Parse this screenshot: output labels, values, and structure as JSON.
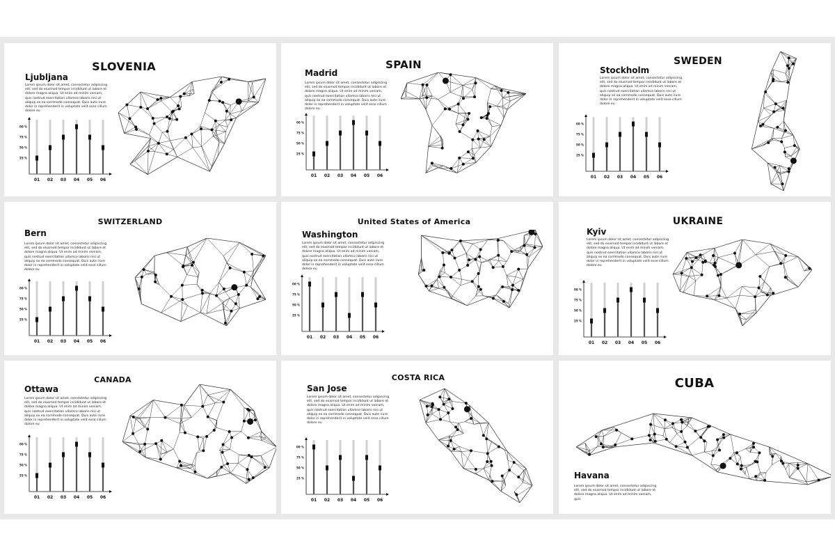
{
  "lorem": "Lorem ipsum dolor sit amet, consectetur adipiscing elit, sed do eiusmod tempor incididunt ut labore et dolore magna aliqua. Ut enim ad minim veniam, quis nostrud exercitation ullamco laboris nisi ut aliquip ex ea commodo consequat. Duis aute irure dolor in reprehenderit in voluptate velit esse cillum dolore eu",
  "lorem_short": "Lorem ipsum dolor sit amet, consectetur adipiscing elit, sed do eiusmod tempor incididunt ut labore et dolore magna aliqua. Ut enim ad minim veniam, quis",
  "colors": {
    "background": "#e8e8e8",
    "slide": "#ffffff",
    "ink": "#111111",
    "track": "#d0d0d0",
    "bar": "#555555"
  },
  "chart_axis": {
    "ticks": [
      "25 %",
      "50 %",
      "75 %",
      "100 %"
    ],
    "categories": [
      "01",
      "02",
      "03",
      "04",
      "05",
      "06"
    ]
  },
  "slides": [
    {
      "country": "SLOVENIA",
      "capital": "Ljubljana",
      "chart": {
        "type": "bar",
        "values": [
          25,
          50,
          75,
          100,
          75,
          50
        ]
      }
    },
    {
      "country": "SPAIN",
      "capital": "Madrid",
      "chart": {
        "type": "bar",
        "values": [
          25,
          50,
          75,
          100,
          75,
          50
        ]
      }
    },
    {
      "country": "SWEDEN",
      "capital": "Stockholm",
      "chart": {
        "type": "bar",
        "values": [
          25,
          50,
          75,
          100,
          75,
          50
        ]
      }
    },
    {
      "country": "SWITZERLAND",
      "capital": "Bern",
      "chart": {
        "type": "bar",
        "values": [
          25,
          50,
          75,
          100,
          75,
          50
        ]
      }
    },
    {
      "country": "United States of America",
      "capital": "Washington",
      "chart": {
        "type": "bar",
        "values": [
          100,
          50,
          75,
          25,
          75,
          50
        ]
      }
    },
    {
      "country": "UKRAINE",
      "capital": "Kyiv",
      "chart": {
        "type": "bar",
        "values": [
          25,
          50,
          75,
          100,
          75,
          50
        ]
      }
    },
    {
      "country": "CANADA",
      "capital": "Ottawa",
      "chart": {
        "type": "bar",
        "values": [
          25,
          50,
          75,
          100,
          75,
          50
        ]
      }
    },
    {
      "country": "COSTA RICA",
      "capital": "San Jose",
      "chart": {
        "type": "bar",
        "values": [
          100,
          50,
          75,
          25,
          75,
          50
        ]
      }
    },
    {
      "country": "CUBA",
      "capital": "Havana",
      "chart": null
    }
  ]
}
